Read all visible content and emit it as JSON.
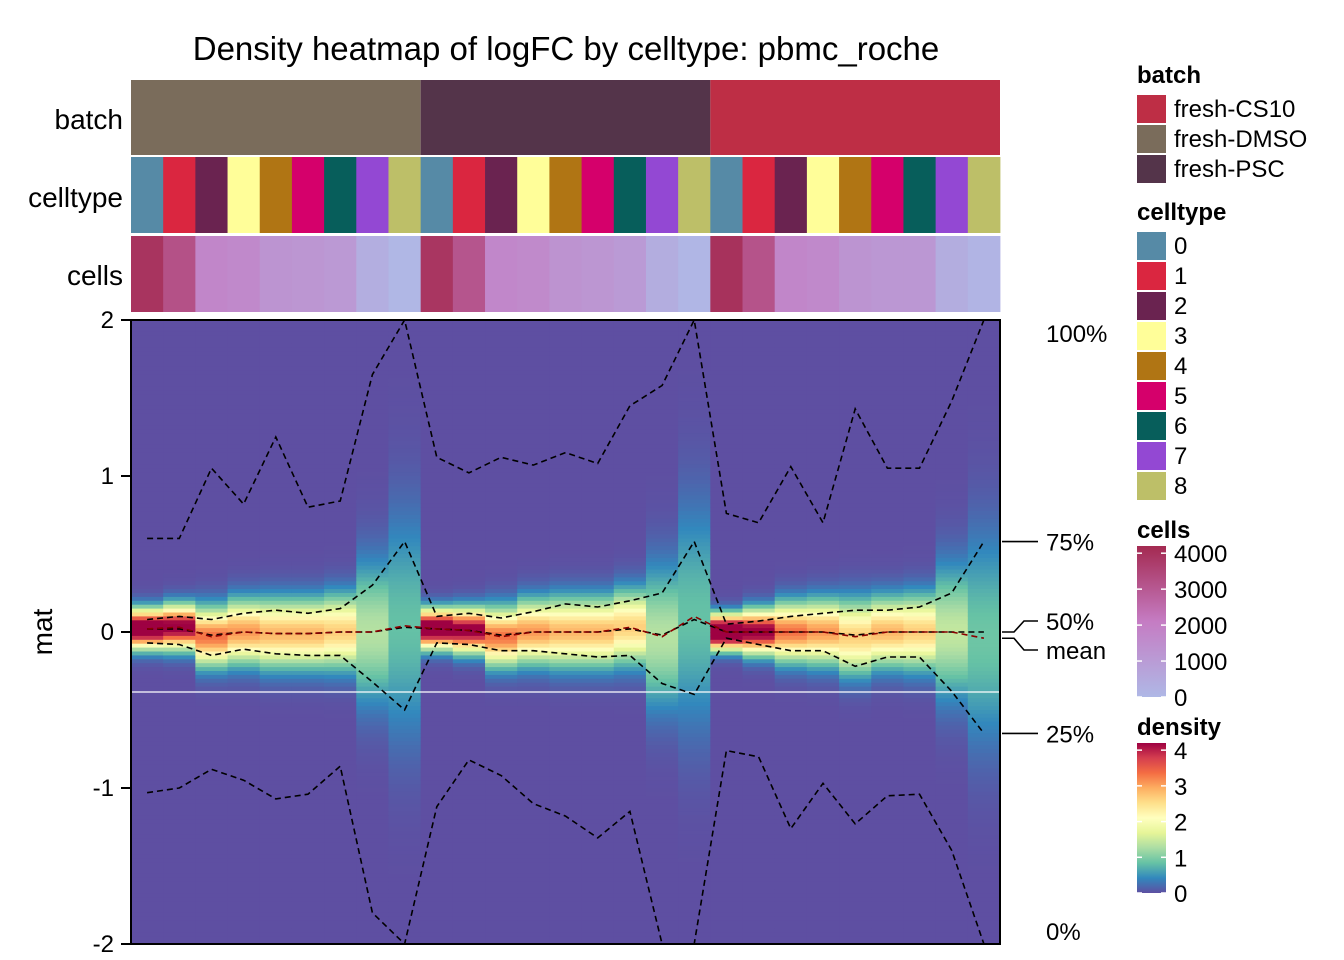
{
  "chart_data": {
    "type": "heatmap",
    "title": "Density heatmap of logFC by celltype: pbmc_roche",
    "ylabel": "mat",
    "ylim": [
      -2,
      2
    ],
    "y_ticks": [
      "2",
      "1",
      "0",
      "-1",
      "-2"
    ],
    "y_tick_values": [
      2,
      1,
      0,
      -1,
      -2
    ],
    "annotation_labels": [
      "batch",
      "celltype",
      "cells"
    ],
    "columns": [
      {
        "batch": "fresh-DMSO",
        "celltype": "0",
        "cells": 3950,
        "mean": 0.02,
        "q0": -1.03,
        "q25": -0.07,
        "q50": 0.02,
        "q75": 0.08,
        "q100": 0.6,
        "sd": 0.08
      },
      {
        "batch": "fresh-DMSO",
        "celltype": "1",
        "cells": 3200,
        "mean": 0.03,
        "q0": -1.0,
        "q25": -0.08,
        "q50": 0.02,
        "q75": 0.1,
        "q100": 0.6,
        "sd": 0.09
      },
      {
        "batch": "fresh-DMSO",
        "celltype": "2",
        "cells": 1750,
        "mean": -0.03,
        "q0": -0.88,
        "q25": -0.15,
        "q50": -0.02,
        "q75": 0.08,
        "q100": 1.05,
        "sd": 0.12
      },
      {
        "batch": "fresh-DMSO",
        "celltype": "3",
        "cells": 1650,
        "mean": 0.0,
        "q0": -0.95,
        "q25": -0.11,
        "q50": 0.0,
        "q75": 0.12,
        "q100": 0.82,
        "sd": 0.13
      },
      {
        "batch": "fresh-DMSO",
        "celltype": "4",
        "cells": 1250,
        "mean": -0.01,
        "q0": -1.07,
        "q25": -0.14,
        "q50": -0.01,
        "q75": 0.14,
        "q100": 1.25,
        "sd": 0.14
      },
      {
        "batch": "fresh-DMSO",
        "celltype": "5",
        "cells": 1200,
        "mean": -0.01,
        "q0": -1.04,
        "q25": -0.15,
        "q50": -0.01,
        "q75": 0.12,
        "q100": 0.8,
        "sd": 0.14
      },
      {
        "batch": "fresh-DMSO",
        "celltype": "6",
        "cells": 1100,
        "mean": 0.0,
        "q0": -0.86,
        "q25": -0.15,
        "q50": 0.0,
        "q75": 0.15,
        "q100": 0.84,
        "sd": 0.15
      },
      {
        "batch": "fresh-DMSO",
        "celltype": "7",
        "cells": 350,
        "mean": 0.0,
        "q0": -1.8,
        "q25": -0.32,
        "q50": 0.0,
        "q75": 0.3,
        "q100": 1.65,
        "sd": 0.3
      },
      {
        "batch": "fresh-DMSO",
        "celltype": "8",
        "cells": 50,
        "mean": 0.04,
        "q0": -2.0,
        "q25": -0.5,
        "q50": 0.03,
        "q75": 0.58,
        "q100": 2.0,
        "sd": 0.48
      },
      {
        "batch": "fresh-PSC",
        "celltype": "0",
        "cells": 3900,
        "mean": 0.02,
        "q0": -1.12,
        "q25": -0.07,
        "q50": 0.02,
        "q75": 0.1,
        "q100": 1.12,
        "sd": 0.08
      },
      {
        "batch": "fresh-PSC",
        "celltype": "1",
        "cells": 3100,
        "mean": 0.01,
        "q0": -0.82,
        "q25": -0.08,
        "q50": 0.01,
        "q75": 0.12,
        "q100": 1.02,
        "sd": 0.09
      },
      {
        "batch": "fresh-PSC",
        "celltype": "2",
        "cells": 1700,
        "mean": -0.03,
        "q0": -0.92,
        "q25": -0.12,
        "q50": -0.02,
        "q75": 0.09,
        "q100": 1.12,
        "sd": 0.12
      },
      {
        "batch": "fresh-PSC",
        "celltype": "3",
        "cells": 1600,
        "mean": 0.0,
        "q0": -1.1,
        "q25": -0.12,
        "q50": 0.0,
        "q75": 0.13,
        "q100": 1.07,
        "sd": 0.13
      },
      {
        "batch": "fresh-PSC",
        "celltype": "4",
        "cells": 1300,
        "mean": 0.0,
        "q0": -1.18,
        "q25": -0.14,
        "q50": 0.0,
        "q75": 0.18,
        "q100": 1.15,
        "sd": 0.14
      },
      {
        "batch": "fresh-PSC",
        "celltype": "5",
        "cells": 1200,
        "mean": 0.0,
        "q0": -1.32,
        "q25": -0.16,
        "q50": 0.0,
        "q75": 0.16,
        "q100": 1.08,
        "sd": 0.14
      },
      {
        "batch": "fresh-PSC",
        "celltype": "6",
        "cells": 1050,
        "mean": 0.03,
        "q0": -1.15,
        "q25": -0.15,
        "q50": 0.02,
        "q75": 0.2,
        "q100": 1.45,
        "sd": 0.15
      },
      {
        "batch": "fresh-PSC",
        "celltype": "7",
        "cells": 400,
        "mean": -0.03,
        "q0": -2.0,
        "q25": -0.33,
        "q50": -0.02,
        "q75": 0.25,
        "q100": 1.58,
        "sd": 0.3
      },
      {
        "batch": "fresh-PSC",
        "celltype": "8",
        "cells": 60,
        "mean": 0.1,
        "q0": -2.0,
        "q25": -0.4,
        "q50": 0.08,
        "q75": 0.58,
        "q100": 2.0,
        "sd": 0.48
      },
      {
        "batch": "fresh-CS10",
        "celltype": "0",
        "cells": 4000,
        "mean": 0.0,
        "q0": -0.76,
        "q25": -0.04,
        "q50": 0.0,
        "q75": 0.05,
        "q100": 0.76,
        "sd": 0.07
      },
      {
        "batch": "fresh-CS10",
        "celltype": "1",
        "cells": 3150,
        "mean": 0.0,
        "q0": -0.8,
        "q25": -0.08,
        "q50": 0.0,
        "q75": 0.07,
        "q100": 0.7,
        "sd": 0.09
      },
      {
        "batch": "fresh-CS10",
        "celltype": "2",
        "cells": 1750,
        "mean": 0.0,
        "q0": -1.26,
        "q25": -0.12,
        "q50": 0.0,
        "q75": 0.1,
        "q100": 1.06,
        "sd": 0.12
      },
      {
        "batch": "fresh-CS10",
        "celltype": "3",
        "cells": 1650,
        "mean": 0.0,
        "q0": -0.97,
        "q25": -0.12,
        "q50": 0.0,
        "q75": 0.12,
        "q100": 0.7,
        "sd": 0.13
      },
      {
        "batch": "fresh-CS10",
        "celltype": "4",
        "cells": 1250,
        "mean": -0.03,
        "q0": -1.23,
        "q25": -0.22,
        "q50": -0.02,
        "q75": 0.14,
        "q100": 1.43,
        "sd": 0.15
      },
      {
        "batch": "fresh-CS10",
        "celltype": "5",
        "cells": 1150,
        "mean": 0.0,
        "q0": -1.05,
        "q25": -0.16,
        "q50": 0.0,
        "q75": 0.14,
        "q100": 1.05,
        "sd": 0.14
      },
      {
        "batch": "fresh-CS10",
        "celltype": "6",
        "cells": 1150,
        "mean": 0.0,
        "q0": -1.04,
        "q25": -0.16,
        "q50": 0.0,
        "q75": 0.16,
        "q100": 1.05,
        "sd": 0.15
      },
      {
        "batch": "fresh-CS10",
        "celltype": "7",
        "cells": 400,
        "mean": 0.0,
        "q0": -1.4,
        "q25": -0.38,
        "q50": 0.0,
        "q75": 0.25,
        "q100": 1.48,
        "sd": 0.28
      },
      {
        "batch": "fresh-CS10",
        "celltype": "8",
        "cells": 150,
        "mean": -0.04,
        "q0": -2.0,
        "q25": -0.65,
        "q50": 0.0,
        "q75": 0.58,
        "q100": 2.0,
        "sd": 0.45
      }
    ],
    "quantile_labels": {
      "q100": "100%",
      "q75": "75%",
      "q50": "50%",
      "mean": "mean",
      "q25": "25%",
      "q0": "0%"
    },
    "legends": {
      "batch": {
        "title": "batch",
        "items": [
          {
            "label": "fresh-CS10",
            "color": "#BE2E45"
          },
          {
            "label": "fresh-DMSO",
            "color": "#7A6C5B"
          },
          {
            "label": "fresh-PSC",
            "color": "#54344A"
          }
        ]
      },
      "celltype": {
        "title": "celltype",
        "items": [
          {
            "label": "0",
            "color": "#568AA6"
          },
          {
            "label": "1",
            "color": "#DA2640"
          },
          {
            "label": "2",
            "color": "#6A2350"
          },
          {
            "label": "3",
            "color": "#FFFE99"
          },
          {
            "label": "4",
            "color": "#B07514"
          },
          {
            "label": "5",
            "color": "#D5006B"
          },
          {
            "label": "6",
            "color": "#075E5B"
          },
          {
            "label": "7",
            "color": "#9348D3"
          },
          {
            "label": "8",
            "color": "#BDBF68"
          }
        ]
      },
      "cells": {
        "title": "cells",
        "ticks": [
          "4000",
          "3000",
          "2000",
          "1000",
          "0"
        ],
        "tick_values": [
          4000,
          3000,
          2000,
          1000,
          0
        ],
        "range": [
          0,
          4200
        ],
        "colors": [
          "#AFB8E6",
          "#C57CC3",
          "#A42A51"
        ]
      },
      "density": {
        "title": "density",
        "ticks": [
          "4",
          "3",
          "2",
          "1",
          "0"
        ],
        "tick_values": [
          4,
          3,
          2,
          1,
          0
        ],
        "range": [
          0,
          4.2
        ],
        "colors": [
          "#5E4FA2",
          "#3288BD",
          "#66C2A5",
          "#ABDDA4",
          "#E6F598",
          "#FFFFBF",
          "#FEE08B",
          "#FDAE61",
          "#F46D43",
          "#D53E4F",
          "#9E0142"
        ]
      }
    }
  }
}
